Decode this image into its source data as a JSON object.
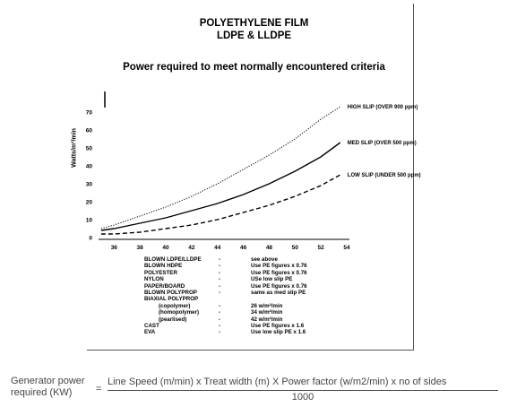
{
  "header": {
    "title_line1": "POLYETHYLENE FILM",
    "title_line2": "LDPE & LLDPE",
    "subtitle": "Power required to meet normally encountered criteria"
  },
  "chart_data": {
    "type": "line",
    "ylabel": "Watts/m²/min",
    "xlabel": "",
    "x_ticks": [
      "36",
      "38",
      "40",
      "42",
      "44",
      "46",
      "48",
      "50",
      "52",
      "54"
    ],
    "y_ticks": [
      "0",
      "10",
      "20",
      "30",
      "40",
      "50",
      "60",
      "70"
    ],
    "xlim": [
      34.8,
      54
    ],
    "ylim": [
      0,
      70
    ],
    "grid": false,
    "legend": "inline labels at line ends",
    "series": [
      {
        "name": "HIGH SLIP (OVER 900 ppm)",
        "style": "dotted",
        "x": [
          35,
          36,
          38,
          40,
          42,
          44,
          46,
          48,
          50,
          52,
          53.5
        ],
        "y": [
          5,
          7,
          12,
          17,
          23,
          30,
          38,
          46,
          55,
          66,
          73
        ]
      },
      {
        "name": "MED SLIP (OVER 500 ppm)",
        "style": "solid",
        "x": [
          35,
          36,
          38,
          40,
          42,
          44,
          46,
          48,
          50,
          52,
          53.5
        ],
        "y": [
          4,
          5,
          8,
          11,
          15,
          19,
          24,
          30,
          37,
          45,
          53
        ]
      },
      {
        "name": "LOW SLIP (UNDER 500 ppm)",
        "style": "dashed",
        "x": [
          35,
          36,
          38,
          40,
          42,
          44,
          46,
          48,
          50,
          52,
          53.5
        ],
        "y": [
          2,
          2,
          3,
          5,
          7,
          10,
          14,
          18,
          23,
          29,
          35
        ]
      }
    ]
  },
  "table": {
    "rows": [
      {
        "material": "BLOWN LDPE/LLDPE",
        "dash": "-",
        "note": "see above"
      },
      {
        "material": "BLOWN HDPE",
        "dash": "-",
        "note": "Use PE figures x 0.76"
      },
      {
        "material": "POLYESTER",
        "dash": "-",
        "note": "Use PE figures x 0.76"
      },
      {
        "material": "NYLON",
        "dash": "-",
        "note": "USe low slip PE"
      },
      {
        "material": "PAPER/BOARD",
        "dash": "-",
        "note": "Use PE figures x 0.76"
      },
      {
        "material": "BLOWN POLYPROP",
        "dash": "-",
        "note": "same as med slip PE"
      },
      {
        "material": "BIAXIAL POLYPROP",
        "dash": "",
        "note": ""
      },
      {
        "material": "(copolymer)",
        "dash": "-",
        "note": "26 w/m²/min"
      },
      {
        "material": "(homopolymer)",
        "dash": "-",
        "note": "34 w/m²/min"
      },
      {
        "material": "(pearlised)",
        "dash": "-",
        "note": "42 w/m²/min"
      },
      {
        "material": "CAST",
        "dash": "-",
        "note": "Use PE figures x 1.6"
      },
      {
        "material": "EVA",
        "dash": "-",
        "note": "Use low slip PE x 1.6"
      }
    ]
  },
  "formula": {
    "lhs_line1": "Generator power",
    "lhs_line2": "required (KW)",
    "equals": "=",
    "numerator": "Line Speed (m/min) x Treat width (m) X Power factor (w/m2/min) x no of sides",
    "denominator": "1000"
  }
}
